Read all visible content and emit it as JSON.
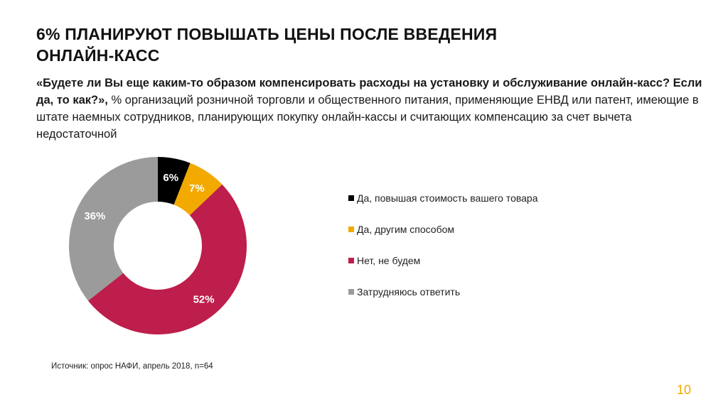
{
  "header": {
    "title_line1": "6% ПЛАНИРУЮТ ПОВЫШАТЬ ЦЕНЫ ПОСЛЕ ВВЕДЕНИЯ",
    "title_line2": "ОНЛАЙН-КАСС"
  },
  "question": {
    "bold": "«Будете ли Вы еще каким-то образом компенсировать расходы на установку и обслуживание онлайн-касс? Если да, то как?»,",
    "rest": " % организаций розничной торговли и общественного питания, применяющие ЕНВД или патент, имеющие в штате наемных сотрудников, планирующих покупку онлайн-кассы и считающих компенсацию за счет вычета недостаточной"
  },
  "chart_data": {
    "type": "pie",
    "donut": true,
    "slices": [
      {
        "label": "Да, повышая стоимость вашего товара",
        "value": 6,
        "display": "6%",
        "color": "#000000",
        "text_color": "#ffffff"
      },
      {
        "label": "Да, другим способом",
        "value": 7,
        "display": "7%",
        "color": "#f2a900",
        "text_color": "#ffffff"
      },
      {
        "label": "Нет, не будем",
        "value": 52,
        "display": "52%",
        "color": "#be1e4b",
        "text_color": "#ffffff"
      },
      {
        "label": "Затрудняюсь ответить",
        "value": 36,
        "display": "36%",
        "color": "#9b9b9b",
        "text_color": "#ffffff"
      }
    ],
    "start_angle_deg": 0,
    "direction": "clockwise",
    "legend_position": "right"
  },
  "footer": {
    "source": "Источник: опрос НАФИ, апрель 2018, n=64",
    "page_number": "10"
  }
}
